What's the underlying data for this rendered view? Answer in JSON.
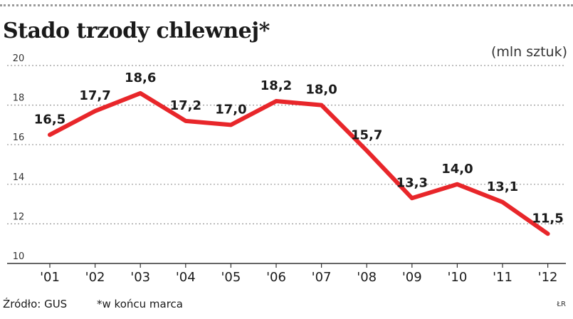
{
  "title": "Stado trzody chlewnej*",
  "unit": "(mln sztuk)",
  "footer": {
    "source": "Źródło: GUS",
    "note": "*w końcu marca",
    "credit": "ŁR"
  },
  "colors": {
    "line": "#e8262a",
    "grid": "#999999",
    "text": "#1a1a1a"
  },
  "chart_data": {
    "type": "line",
    "title": "Stado trzody chlewnej*",
    "ylabel": "(mln sztuk)",
    "xlabel": "",
    "ylim": [
      10,
      20
    ],
    "yticks": [
      20,
      18,
      16,
      14,
      12,
      10
    ],
    "grid": "horizontal-dotted",
    "categories": [
      "'01",
      "'02",
      "'03",
      "'04",
      "'05",
      "'06",
      "'07",
      "'08",
      "'09",
      "'10",
      "'11",
      "'12"
    ],
    "values": [
      16.5,
      17.7,
      18.6,
      17.2,
      17.0,
      18.2,
      18.0,
      15.7,
      13.3,
      14.0,
      13.1,
      11.5
    ],
    "data_labels": [
      "16,5",
      "17,7",
      "18,6",
      "17,2",
      "17,0",
      "18,2",
      "18,0",
      "15,7",
      "13,3",
      "14,0",
      "13,1",
      "11,5"
    ]
  }
}
